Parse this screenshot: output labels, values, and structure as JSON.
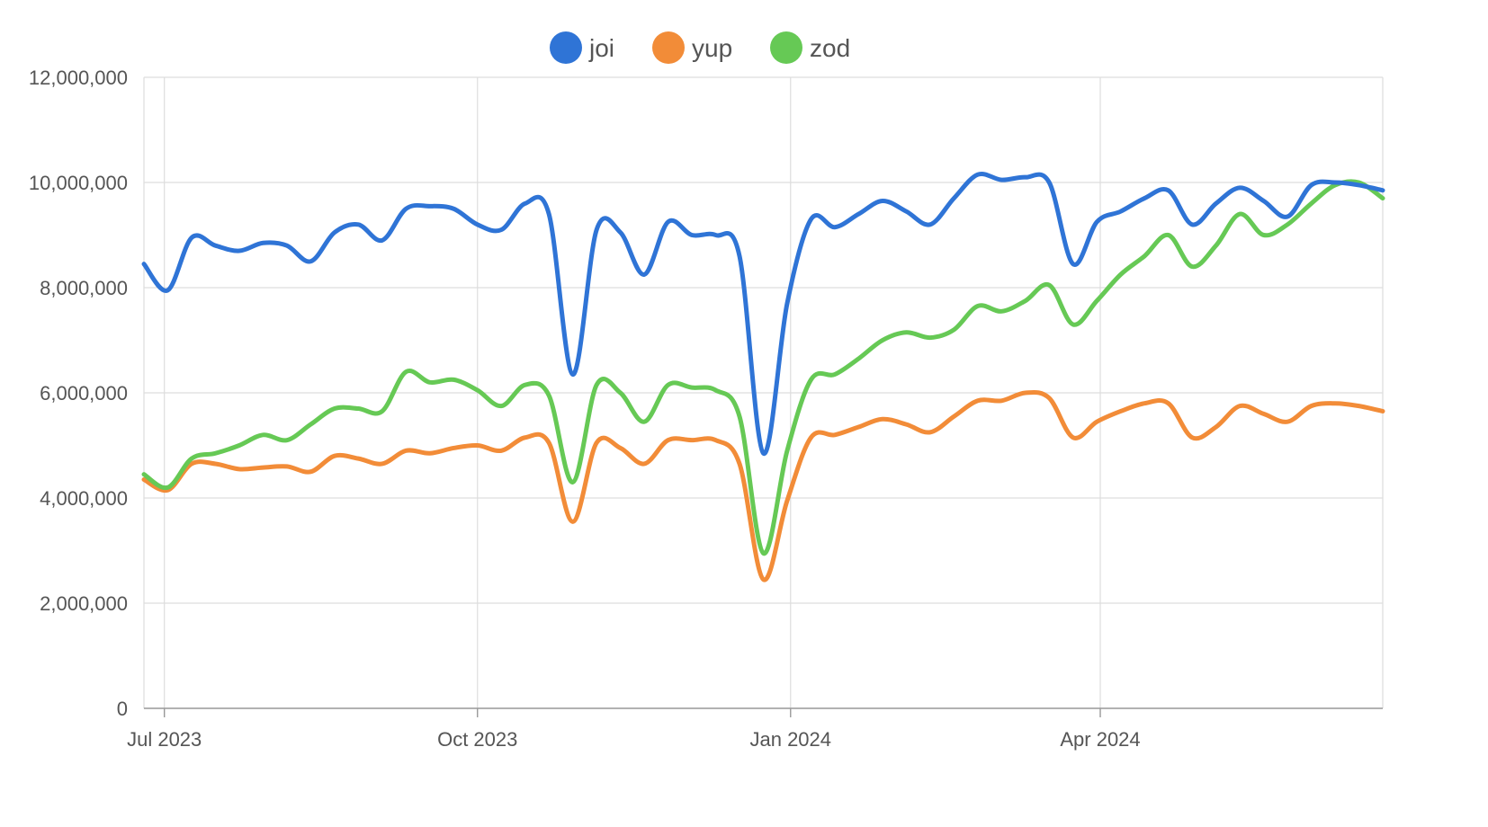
{
  "chart_data": {
    "type": "line",
    "title": "",
    "xlabel": "",
    "ylabel": "",
    "x_axis_type": "date",
    "xlim": [
      "2023-06-25",
      "2024-06-23"
    ],
    "ylim": [
      0,
      12000000
    ],
    "yticks": [
      0,
      2000000,
      4000000,
      6000000,
      8000000,
      10000000,
      12000000
    ],
    "ytick_labels": [
      "0",
      "2,000,000",
      "4,000,000",
      "6,000,000",
      "8,000,000",
      "10,000,000",
      "12,000,000"
    ],
    "xticks": [
      "2023-07-01",
      "2023-10-01",
      "2024-01-01",
      "2024-04-01"
    ],
    "xtick_labels": [
      "Jul 2023",
      "Oct 2023",
      "Jan 2024",
      "Apr 2024"
    ],
    "grid": true,
    "legend_position": "top-center",
    "x": [
      "2023-06-25",
      "2023-07-02",
      "2023-07-09",
      "2023-07-16",
      "2023-07-23",
      "2023-07-30",
      "2023-08-06",
      "2023-08-13",
      "2023-08-20",
      "2023-08-27",
      "2023-09-03",
      "2023-09-10",
      "2023-09-17",
      "2023-09-24",
      "2023-10-01",
      "2023-10-08",
      "2023-10-15",
      "2023-10-22",
      "2023-10-29",
      "2023-11-05",
      "2023-11-12",
      "2023-11-19",
      "2023-11-26",
      "2023-12-03",
      "2023-12-10",
      "2023-12-17",
      "2023-12-24",
      "2023-12-31",
      "2024-01-07",
      "2024-01-14",
      "2024-01-21",
      "2024-01-28",
      "2024-02-04",
      "2024-02-11",
      "2024-02-18",
      "2024-02-25",
      "2024-03-03",
      "2024-03-10",
      "2024-03-17",
      "2024-03-24",
      "2024-03-31",
      "2024-04-07",
      "2024-04-14",
      "2024-04-21",
      "2024-04-28",
      "2024-05-05",
      "2024-05-12",
      "2024-05-19",
      "2024-05-26",
      "2024-06-02",
      "2024-06-09",
      "2024-06-16",
      "2024-06-23"
    ],
    "series": [
      {
        "name": "joi",
        "color": "#2f74d6",
        "values": [
          8450000,
          7950000,
          8950000,
          8800000,
          8700000,
          8850000,
          8800000,
          8500000,
          9050000,
          9200000,
          8900000,
          9500000,
          9550000,
          9500000,
          9200000,
          9100000,
          9600000,
          9400000,
          6350000,
          9100000,
          9050000,
          8250000,
          9250000,
          9000000,
          9000000,
          8600000,
          4850000,
          7700000,
          9300000,
          9150000,
          9400000,
          9650000,
          9450000,
          9200000,
          9700000,
          10150000,
          10050000,
          10100000,
          10000000,
          8450000,
          9250000,
          9450000,
          9700000,
          9850000,
          9200000,
          9600000,
          9900000,
          9650000,
          9350000,
          9950000,
          10000000,
          9950000,
          9850000
        ]
      },
      {
        "name": "yup",
        "color": "#f28c38",
        "values": [
          4350000,
          4150000,
          4650000,
          4650000,
          4550000,
          4580000,
          4600000,
          4500000,
          4800000,
          4750000,
          4650000,
          4900000,
          4850000,
          4950000,
          5000000,
          4900000,
          5150000,
          5050000,
          3550000,
          5050000,
          4950000,
          4650000,
          5100000,
          5100000,
          5100000,
          4650000,
          2450000,
          3950000,
          5150000,
          5200000,
          5350000,
          5500000,
          5400000,
          5250000,
          5550000,
          5850000,
          5850000,
          6000000,
          5900000,
          5150000,
          5450000,
          5650000,
          5800000,
          5800000,
          5150000,
          5350000,
          5750000,
          5600000,
          5450000,
          5750000,
          5800000,
          5750000,
          5650000
        ]
      },
      {
        "name": "zod",
        "color": "#66c955",
        "values": [
          4450000,
          4200000,
          4750000,
          4850000,
          5000000,
          5200000,
          5100000,
          5400000,
          5700000,
          5700000,
          5650000,
          6400000,
          6200000,
          6250000,
          6050000,
          5750000,
          6150000,
          5950000,
          4300000,
          6150000,
          6000000,
          5450000,
          6150000,
          6100000,
          6050000,
          5550000,
          2950000,
          4900000,
          6250000,
          6350000,
          6650000,
          7000000,
          7150000,
          7050000,
          7200000,
          7650000,
          7550000,
          7750000,
          8050000,
          7300000,
          7750000,
          8250000,
          8600000,
          9000000,
          8400000,
          8800000,
          9400000,
          9000000,
          9200000,
          9600000,
          9950000,
          10000000,
          9700000
        ]
      }
    ]
  }
}
